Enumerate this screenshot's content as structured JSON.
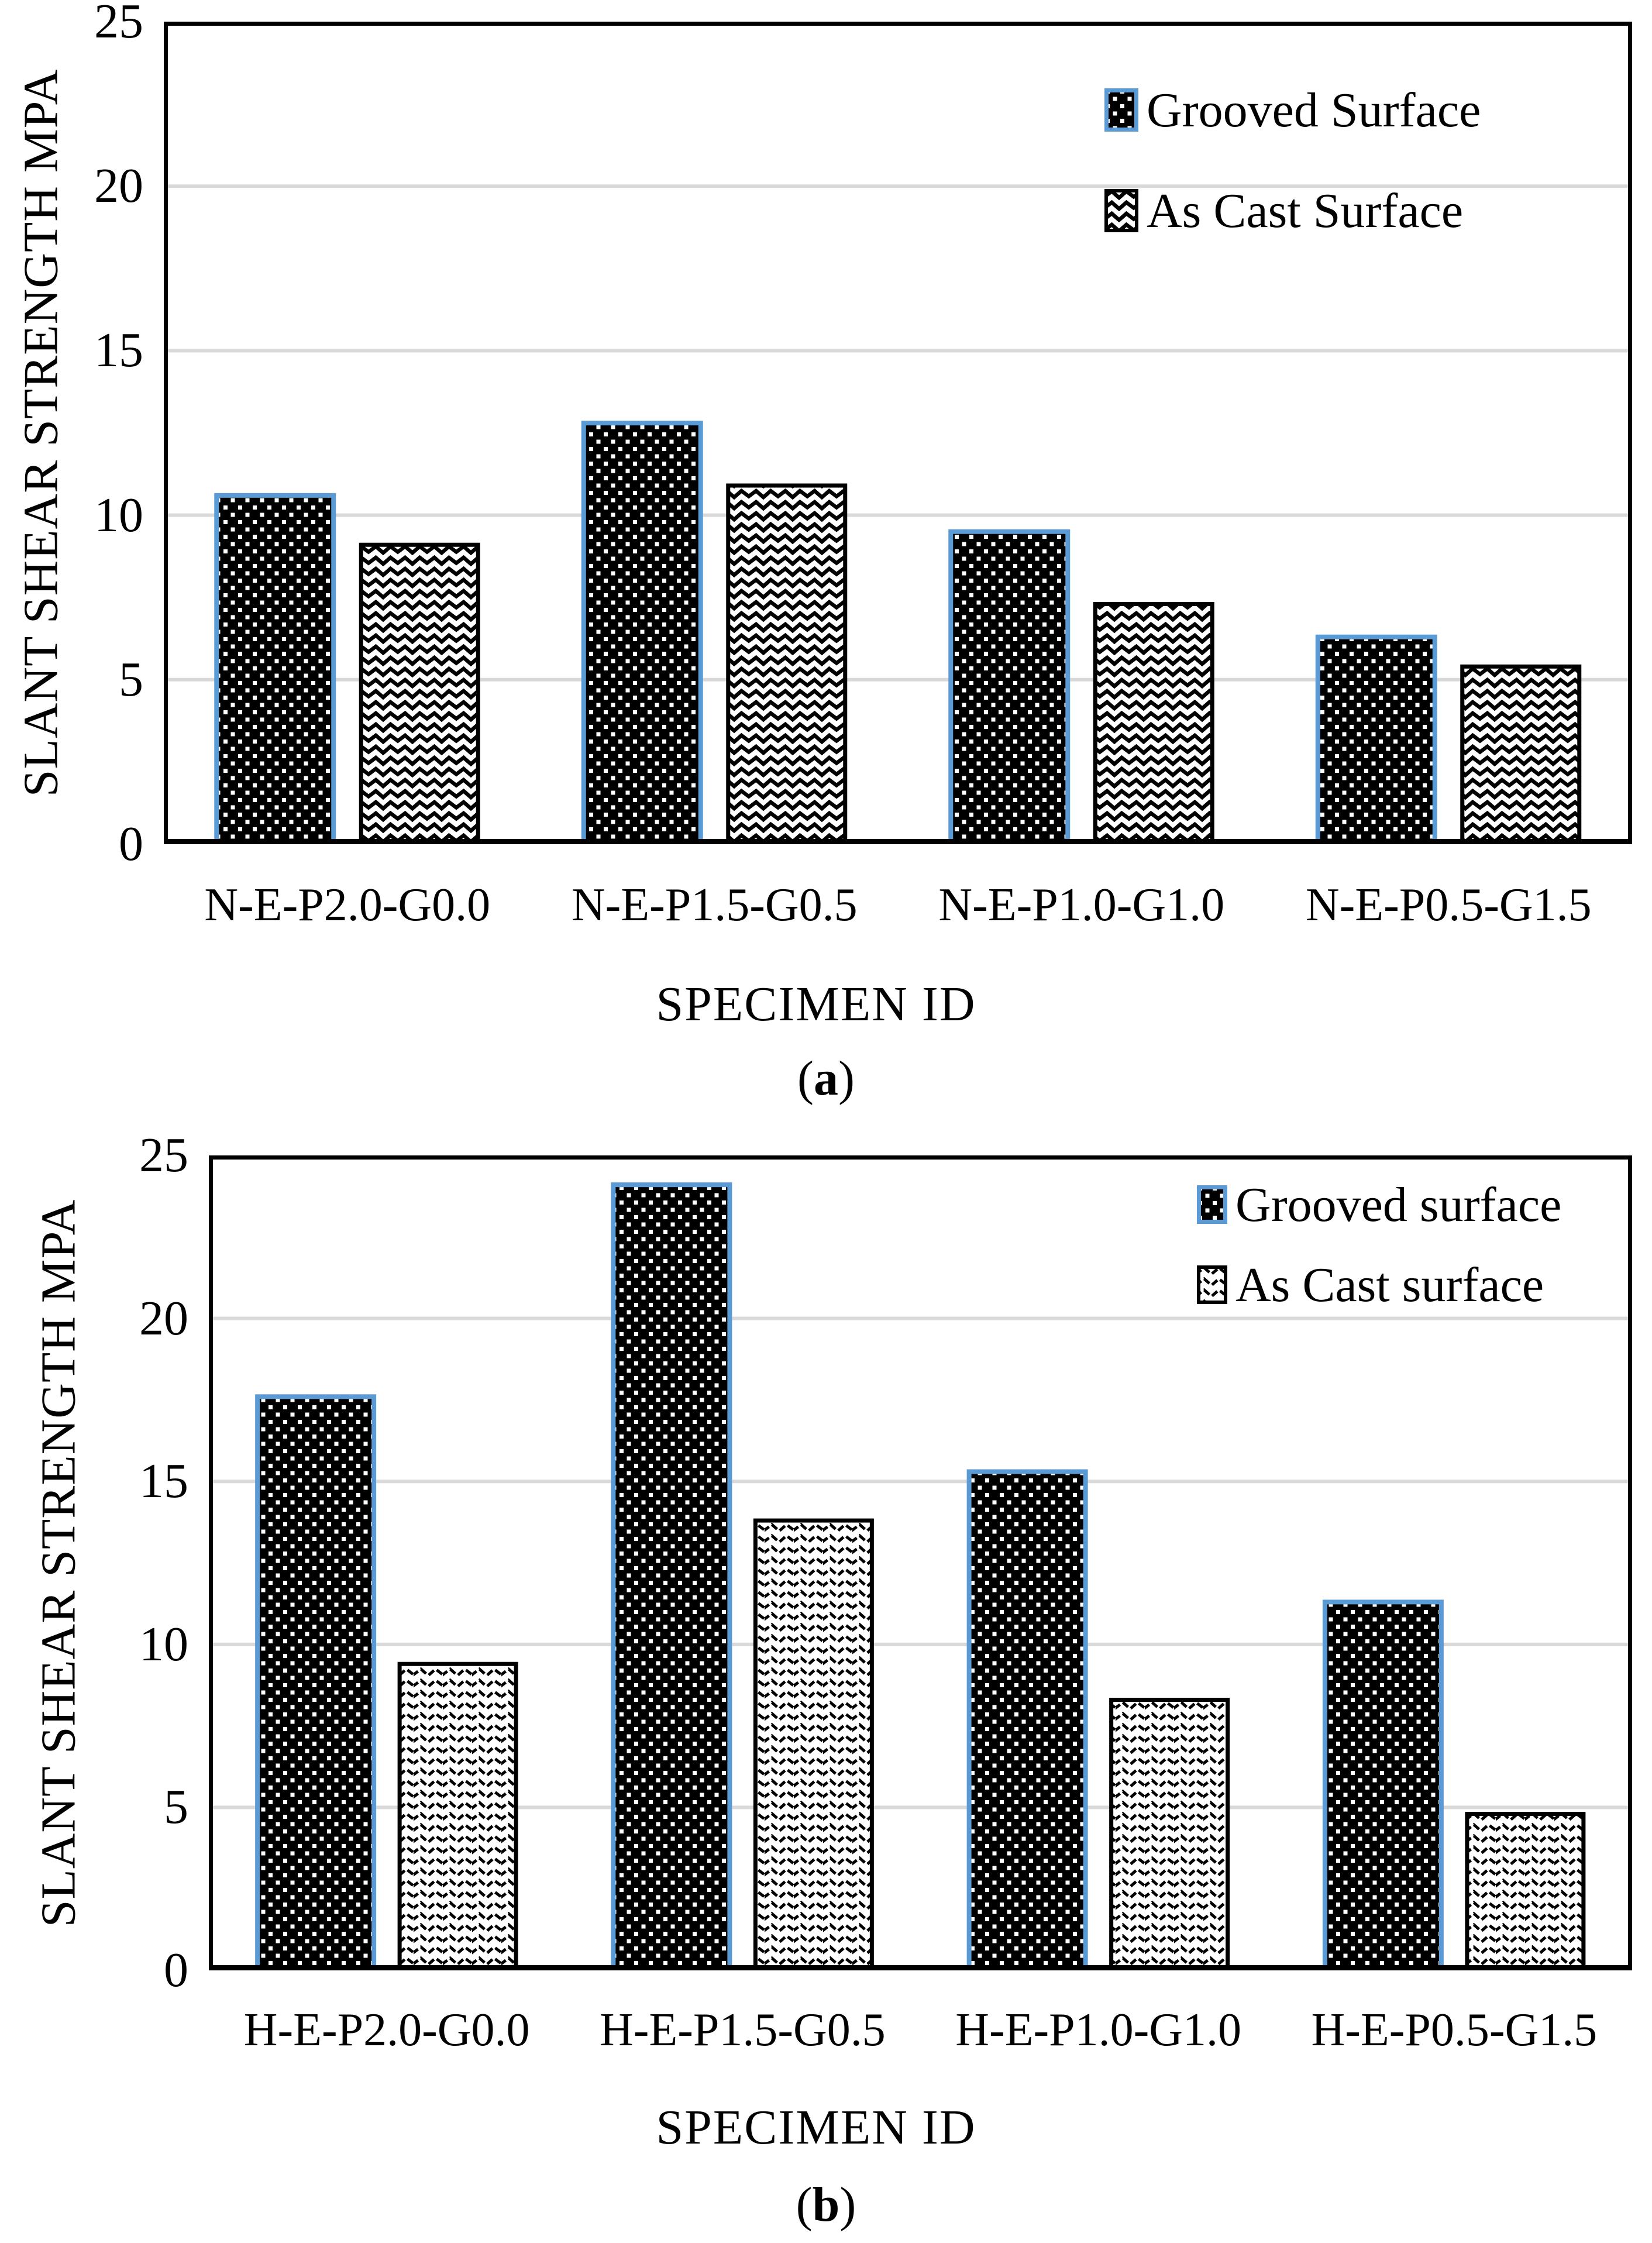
{
  "figure": {
    "background_color": "#ffffff",
    "accent_blue": "#5b9bd5",
    "gridline_color": "#d9d9d9",
    "bar_fill_black": "#000000",
    "text_color": "#000000"
  },
  "chart_data": [
    {
      "id": "a",
      "type": "bar",
      "caption_prefix": "(",
      "caption_letter": "a",
      "caption_suffix": ")",
      "xlabel": "SPECIMEN ID",
      "ylabel": "SLANT SHEAR STRENGTH MPA",
      "ylim": [
        0,
        25
      ],
      "yticks": [
        0,
        5,
        10,
        15,
        20,
        25
      ],
      "grid": true,
      "legend_position": "top-right-inside",
      "categories": [
        "N-E-P2.0-G0.0",
        "N-E-P1.5-G0.5",
        "N-E-P1.0-G1.0",
        "N-E-P0.5-G1.5"
      ],
      "series": [
        {
          "name": "Grooved Surface",
          "key": "grooved",
          "values": [
            10.6,
            12.8,
            9.5,
            6.3
          ],
          "fill_pattern": "white-dots-on-black",
          "border_color": "#5b9bd5"
        },
        {
          "name": "As Cast Surface",
          "key": "as_cast",
          "values": [
            9.1,
            10.9,
            7.3,
            5.4
          ],
          "fill_pattern": "black-zigzag-on-white",
          "border_color": "#000000"
        }
      ]
    },
    {
      "id": "b",
      "type": "bar",
      "caption_prefix": "(",
      "caption_letter": "b",
      "caption_suffix": ")",
      "xlabel": "SPECIMEN ID",
      "ylabel": "SLANT SHEAR STRENGTH MPA",
      "ylim": [
        0,
        25
      ],
      "yticks": [
        0,
        5,
        10,
        15,
        20,
        25
      ],
      "grid": true,
      "legend_position": "top-right-inside",
      "categories": [
        "H-E-P2.0-G0.0",
        "H-E-P1.5-G0.5",
        "H-E-P1.0-G1.0",
        "H-E-P0.5-G1.5"
      ],
      "series": [
        {
          "name": "Grooved surface",
          "key": "grooved",
          "values": [
            17.6,
            24.1,
            15.3,
            11.3
          ],
          "fill_pattern": "white-dots-on-black",
          "border_color": "#5b9bd5"
        },
        {
          "name": "As Cast surface",
          "key": "as_cast",
          "values": [
            9.4,
            13.8,
            8.3,
            4.8
          ],
          "fill_pattern": "black-dashed-wave-on-white",
          "border_color": "#000000"
        }
      ]
    }
  ]
}
